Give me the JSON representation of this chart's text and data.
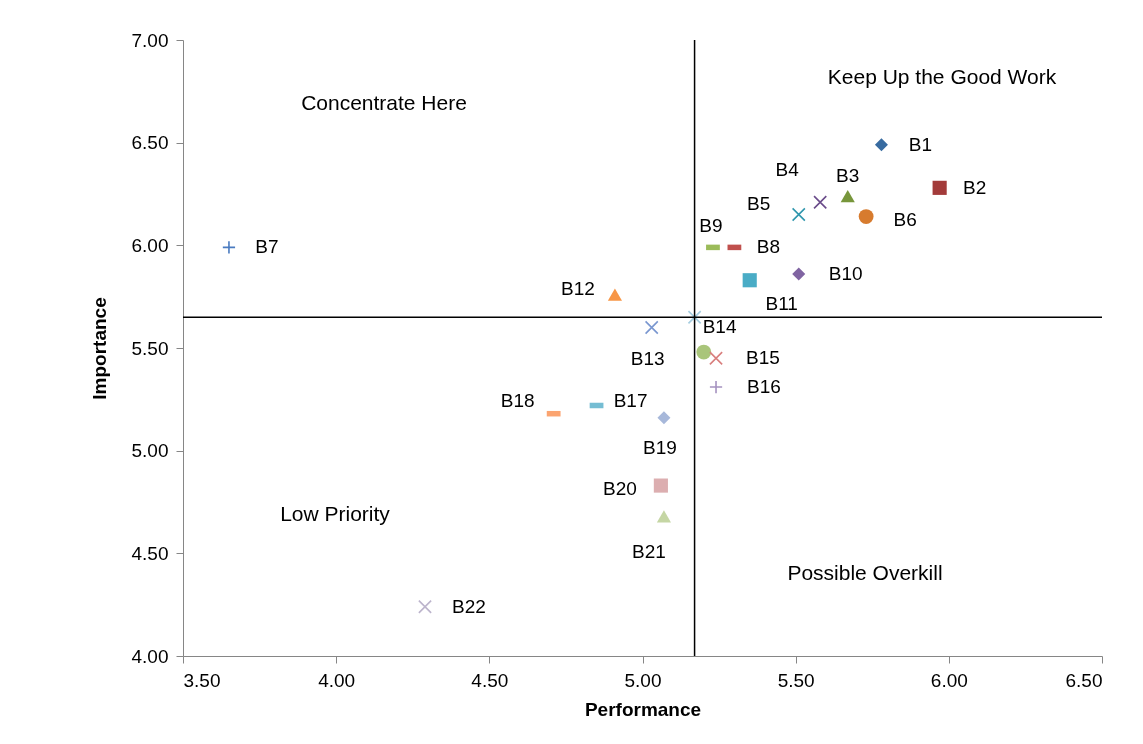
{
  "chart_data": {
    "type": "scatter",
    "xlabel": "Performance",
    "ylabel": "Importance",
    "xlim": [
      3.5,
      6.5
    ],
    "ylim": [
      4,
      7
    ],
    "xticks": [
      {
        "value": 3.5,
        "label": "3.50"
      },
      {
        "value": 4,
        "label": "4.00"
      },
      {
        "value": 4.5,
        "label": "4.50"
      },
      {
        "value": 5,
        "label": "5.00"
      },
      {
        "value": 5.5,
        "label": "5.50"
      },
      {
        "value": 6,
        "label": "6.00"
      },
      {
        "value": 6.5,
        "label": "6.50"
      }
    ],
    "yticks": [
      {
        "value": 4,
        "label": "4.00"
      },
      {
        "value": 4.5,
        "label": "4.50"
      },
      {
        "value": 5,
        "label": "5.00"
      },
      {
        "value": 5.5,
        "label": "5.50"
      },
      {
        "value": 6,
        "label": "6.00"
      },
      {
        "value": 6.5,
        "label": "6.50"
      },
      {
        "value": 7,
        "label": "7.00"
      }
    ],
    "grid": false,
    "ref_lines": [
      {
        "axis": "x",
        "value": 5.17,
        "color": "#000000"
      },
      {
        "axis": "y",
        "value": 5.65,
        "color": "#000000"
      }
    ],
    "annotations": [
      "Concentrate Here",
      "Keep Up the Good Work",
      "Low Priority",
      "Possible Overkill"
    ],
    "series": [
      {
        "name": "B1",
        "color": "#386ba0",
        "marker": "diamond",
        "x": [
          5.78
        ],
        "values": [
          6.49
        ]
      },
      {
        "name": "B2",
        "color": "#a33b3a",
        "marker": "square",
        "x": [
          5.97
        ],
        "values": [
          6.28
        ]
      },
      {
        "name": "B3",
        "color": "#77963b",
        "marker": "triangle",
        "x": [
          5.67
        ],
        "values": [
          6.24
        ]
      },
      {
        "name": "B4",
        "color": "#6a4b8a",
        "marker": "cross",
        "x": [
          5.58
        ],
        "values": [
          6.21
        ]
      },
      {
        "name": "B5",
        "color": "#2f96ad",
        "marker": "cross",
        "x": [
          5.51
        ],
        "values": [
          6.15
        ]
      },
      {
        "name": "B6",
        "color": "#d77b2e",
        "marker": "circle",
        "x": [
          5.73
        ],
        "values": [
          6.14
        ]
      },
      {
        "name": "B7",
        "color": "#4a7bc0",
        "marker": "plus",
        "x": [
          3.65
        ],
        "values": [
          5.99
        ]
      },
      {
        "name": "B8",
        "color": "#c0504d",
        "x": [
          5.3
        ],
        "values": [
          5.99
        ]
      },
      {
        "name": "B9",
        "color": "#9bbb59",
        "x": [
          5.23
        ],
        "values": [
          5.99
        ]
      },
      {
        "name": "B10",
        "color": "#8064a2",
        "marker": "diamond",
        "x": [
          5.51
        ],
        "values": [
          5.86
        ]
      },
      {
        "name": "B11",
        "color": "#4aacc6",
        "marker": "square",
        "x": [
          5.35
        ],
        "values": [
          5.83
        ]
      },
      {
        "name": "B12",
        "color": "#f79646",
        "marker": "triangle",
        "x": [
          4.91
        ],
        "values": [
          5.76
        ]
      },
      {
        "name": "B13",
        "color": "#7a97d0",
        "marker": "cross",
        "x": [
          5.03
        ],
        "values": [
          5.6
        ]
      },
      {
        "name": "B14",
        "color": "#a5cde0",
        "marker": "cross",
        "x": [
          5.17
        ],
        "values": [
          5.65
        ]
      },
      {
        "color": "#a9c57a",
        "marker": "circle",
        "x": [
          5.2
        ],
        "values": [
          5.48
        ]
      },
      {
        "name": "B15",
        "color": "#d87e7d",
        "marker": "cross",
        "x": [
          5.24
        ],
        "values": [
          5.45
        ]
      },
      {
        "name": "B16",
        "color": "#a592c0",
        "marker": "plus",
        "x": [
          5.24
        ],
        "values": [
          5.31
        ]
      },
      {
        "name": "B17",
        "color": "#75bdd3",
        "x": [
          4.85
        ],
        "values": [
          5.22
        ]
      },
      {
        "name": "B18",
        "color": "#fba470",
        "x": [
          4.71
        ],
        "values": [
          5.18
        ]
      },
      {
        "name": "B19",
        "color": "#a7b8da",
        "marker": "diamond",
        "x": [
          5.07
        ],
        "values": [
          5.16
        ]
      },
      {
        "name": "B20",
        "color": "#dcaeb0",
        "marker": "square",
        "x": [
          5.06
        ],
        "values": [
          4.83
        ]
      },
      {
        "name": "B21",
        "color": "#c5d6a4",
        "marker": "triangle",
        "x": [
          5.07
        ],
        "values": [
          4.68
        ]
      },
      {
        "name": "B22",
        "color": "#bcb4cc",
        "marker": "cross",
        "x": [
          4.29
        ],
        "values": [
          4.24
        ]
      }
    ]
  }
}
